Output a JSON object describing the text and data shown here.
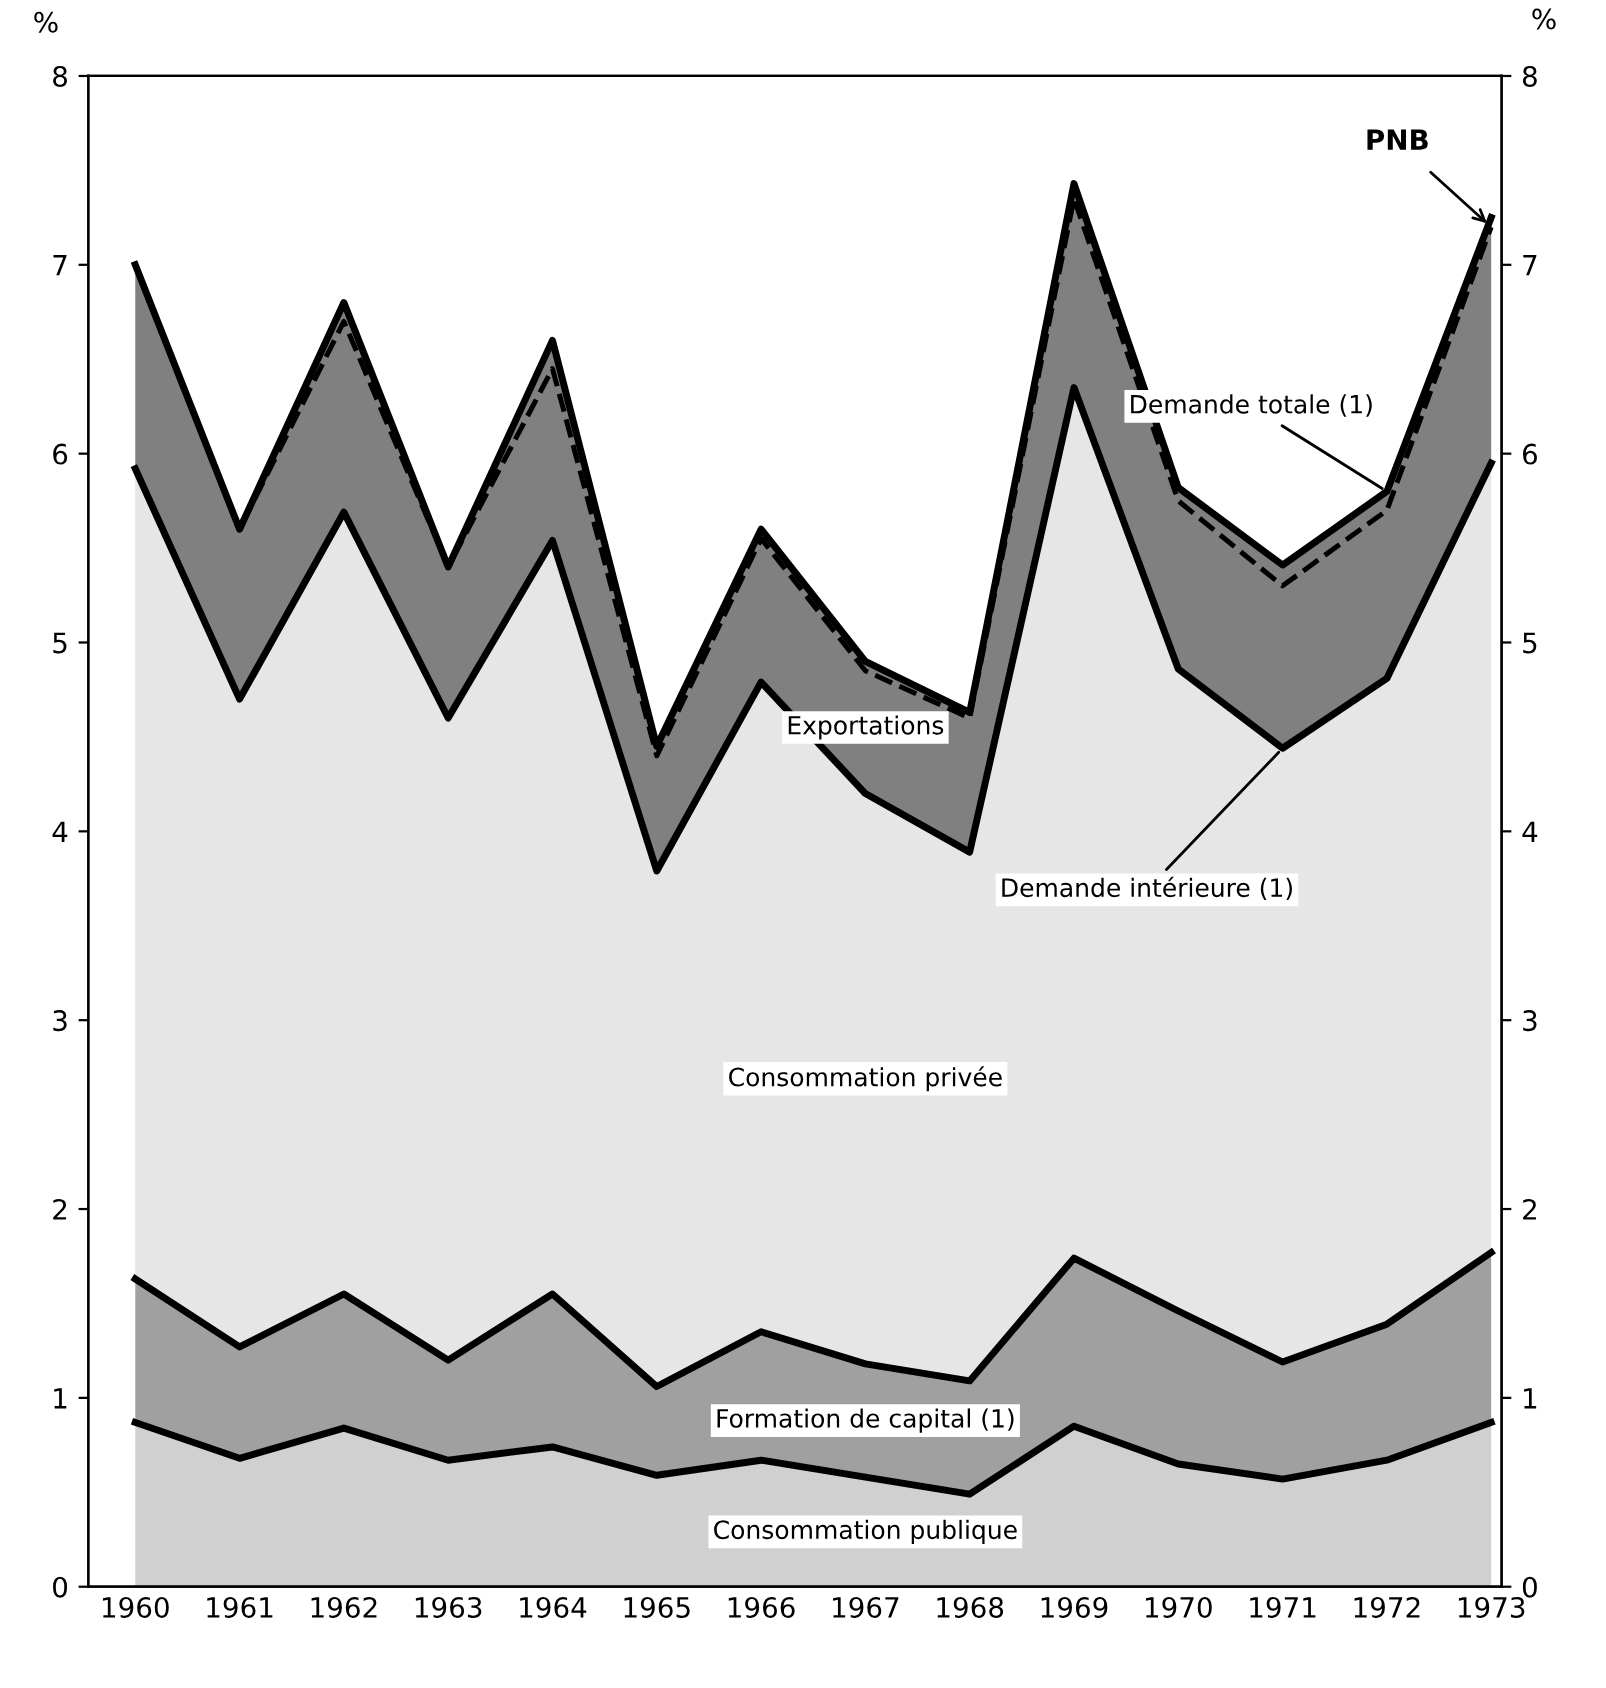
{
  "chart_data": {
    "type": "area",
    "stacked": true,
    "categories": [
      "1960",
      "1961",
      "1962",
      "1963",
      "1964",
      "1965",
      "1966",
      "1967",
      "1968",
      "1969",
      "1970",
      "1971",
      "1972",
      "1973"
    ],
    "series": [
      {
        "name": "Consommation publique",
        "color": "#d0d0d0",
        "values": [
          0.87,
          0.68,
          0.84,
          0.67,
          0.74,
          0.59,
          0.67,
          0.58,
          0.49,
          0.85,
          0.65,
          0.57,
          0.67,
          0.87
        ]
      },
      {
        "name": "Formation de capital (1)",
        "color": "#a0a0a0",
        "values": [
          0.76,
          0.59,
          0.71,
          0.53,
          0.81,
          0.47,
          0.68,
          0.6,
          0.6,
          0.89,
          0.81,
          0.62,
          0.72,
          0.9
        ]
      },
      {
        "name": "Consommation privée",
        "color": "#e6e6e6",
        "values": [
          4.29,
          3.43,
          4.14,
          3.4,
          3.99,
          2.73,
          3.44,
          3.02,
          2.8,
          4.61,
          3.4,
          3.25,
          3.42,
          4.18
        ]
      },
      {
        "name": "Exportations",
        "color": "#808080",
        "values": [
          1.08,
          0.9,
          1.11,
          0.8,
          1.06,
          0.66,
          0.81,
          0.7,
          0.74,
          1.08,
          0.96,
          0.97,
          0.99,
          1.3
        ]
      },
      {
        "name": "PNB",
        "type": "line",
        "color": "#000000",
        "line_style": "dashed",
        "values": [
          7.0,
          5.6,
          6.7,
          5.4,
          6.45,
          4.4,
          5.55,
          4.85,
          4.6,
          7.35,
          5.75,
          5.3,
          5.7,
          7.2
        ]
      }
    ],
    "annotations": [
      {
        "text": "Demande totale (1)",
        "x": "1972",
        "y": 5.8
      },
      {
        "text": "Demande intérieure (1)",
        "x": "1971",
        "y": 4.44
      }
    ],
    "ylabel": "%",
    "y2label": "%",
    "ylim": [
      0,
      8
    ],
    "yticks": [
      0,
      1,
      2,
      3,
      4,
      5,
      6,
      7,
      8
    ],
    "y2lim": [
      0,
      8
    ],
    "y2ticks": [
      0,
      1,
      2,
      3,
      4,
      5,
      6,
      7,
      8
    ],
    "grid": false,
    "legend": false
  }
}
